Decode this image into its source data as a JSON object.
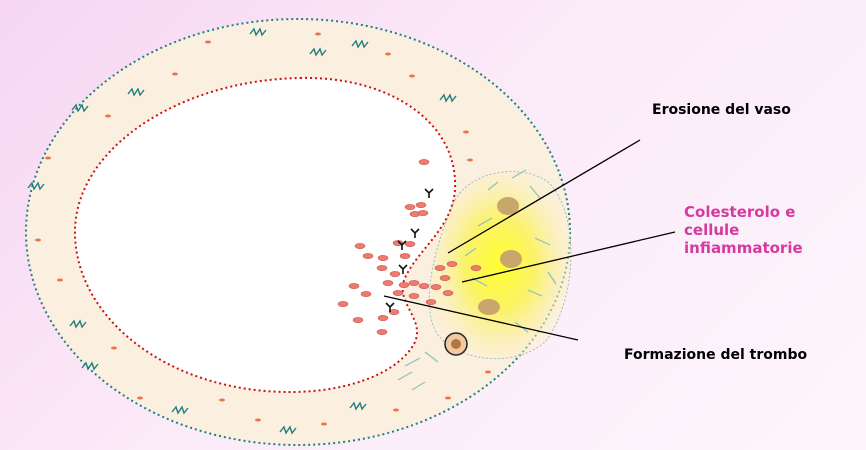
{
  "labels": {
    "erosion": "Erosione del vaso",
    "cholesterol": "Colesterolo e\ncellule\ninfiammatorie",
    "thrombus": "Formazione del trombo"
  },
  "colors": {
    "vessel_wall": "#fbefe0",
    "outer_border": "#1e8080",
    "inner_border": "#cc1111",
    "plaque_center": "#ffff33",
    "red_cells": "#ef7a6e",
    "highlight_label": "#d63aa0"
  }
}
